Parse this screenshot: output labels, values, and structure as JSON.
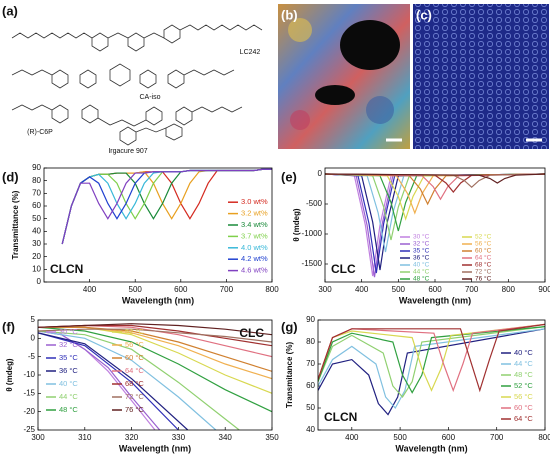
{
  "figure": {
    "a": {
      "label": "(a)",
      "compounds": [
        "LC242",
        "CA-iso",
        "(R)-C6P",
        "Irgacure 907"
      ]
    },
    "b": {
      "label": "(b)"
    },
    "c": {
      "label": "(c)"
    }
  },
  "chart_data": [
    {
      "type": "line",
      "panel": "(d)",
      "annotation": "CLCN",
      "annotation_loc": "lower left",
      "legend": "center right",
      "x_label": "Wavelength (nm)",
      "y_label": "Transmittance (%)",
      "xlim": [
        300,
        800
      ],
      "xticks": [
        400,
        500,
        600,
        700,
        800
      ],
      "ylim": [
        0,
        90
      ],
      "yticks": [
        0,
        10,
        20,
        30,
        40,
        50,
        60,
        70,
        80,
        90
      ],
      "x": [
        340,
        360,
        380,
        400,
        420,
        440,
        460,
        480,
        500,
        520,
        540,
        560,
        580,
        600,
        620,
        640,
        660,
        680,
        700,
        720,
        740,
        760,
        780,
        800
      ],
      "series": [
        {
          "name": "3.0 wt%",
          "color": "#d42a20",
          "values": [
            30,
            60,
            78,
            83,
            85,
            85,
            86,
            86,
            86,
            87,
            87,
            87,
            78,
            62,
            50,
            62,
            78,
            88,
            88,
            88,
            88,
            88,
            89,
            89
          ]
        },
        {
          "name": "3.2 wt%",
          "color": "#e8a020",
          "values": [
            30,
            60,
            78,
            83,
            85,
            85,
            86,
            86,
            86,
            87,
            78,
            62,
            50,
            62,
            78,
            87,
            88,
            88,
            88,
            88,
            88,
            88,
            89,
            89
          ]
        },
        {
          "name": "3.4 wt%",
          "color": "#1a8a3a",
          "values": [
            30,
            60,
            78,
            83,
            85,
            85,
            86,
            86,
            78,
            62,
            50,
            62,
            78,
            87,
            88,
            88,
            88,
            88,
            88,
            88,
            88,
            88,
            89,
            89
          ]
        },
        {
          "name": "3.7 wt%",
          "color": "#7fd04a",
          "values": [
            30,
            60,
            78,
            83,
            85,
            85,
            78,
            62,
            50,
            62,
            78,
            87,
            87,
            87,
            88,
            88,
            88,
            88,
            88,
            88,
            88,
            88,
            89,
            89
          ]
        },
        {
          "name": "4.0 wt%",
          "color": "#38b8d8",
          "values": [
            30,
            60,
            78,
            83,
            85,
            78,
            62,
            50,
            62,
            78,
            86,
            87,
            87,
            87,
            88,
            88,
            88,
            88,
            88,
            88,
            88,
            88,
            89,
            89
          ]
        },
        {
          "name": "4.2 wt%",
          "color": "#2040d0",
          "values": [
            30,
            60,
            78,
            83,
            78,
            62,
            50,
            62,
            78,
            86,
            87,
            87,
            87,
            87,
            88,
            88,
            88,
            88,
            88,
            88,
            88,
            88,
            89,
            89
          ]
        },
        {
          "name": "4.6 wt%",
          "color": "#8040c0",
          "values": [
            30,
            60,
            78,
            78,
            62,
            50,
            62,
            78,
            86,
            86,
            87,
            87,
            87,
            87,
            88,
            88,
            88,
            88,
            88,
            88,
            88,
            88,
            89,
            89
          ]
        }
      ]
    },
    {
      "type": "line",
      "panel": "(e)",
      "annotation": "CLC",
      "annotation_loc": "lower left",
      "legend": "lower center",
      "x_label": "Wavelength (nm)",
      "y_label": "θ (mdeg)",
      "xlim": [
        300,
        900
      ],
      "xticks": [
        300,
        400,
        500,
        600,
        700,
        800,
        900
      ],
      "ylim": [
        -1800,
        100
      ],
      "yticks": [
        -1500,
        -1000,
        -500,
        0
      ],
      "series": [
        {
          "name": "30 °C",
          "color": "#c080e0",
          "x": [
            300,
            380,
            410,
            430,
            450,
            480,
            900
          ],
          "values": [
            0,
            -30,
            -850,
            -1700,
            -850,
            -30,
            0
          ]
        },
        {
          "name": "32 °C",
          "color": "#9a60d0",
          "x": [
            300,
            385,
            415,
            435,
            455,
            485,
            900
          ],
          "values": [
            0,
            -30,
            -860,
            -1720,
            -860,
            -30,
            0
          ]
        },
        {
          "name": "35 °C",
          "color": "#3030b8",
          "x": [
            300,
            390,
            420,
            440,
            460,
            490,
            900
          ],
          "values": [
            0,
            -30,
            -825,
            -1650,
            -825,
            -30,
            0
          ]
        },
        {
          "name": "36 °C",
          "color": "#202080",
          "x": [
            300,
            400,
            430,
            450,
            470,
            500,
            900
          ],
          "values": [
            0,
            -30,
            -800,
            -1600,
            -800,
            -30,
            0
          ]
        },
        {
          "name": "40 °C",
          "color": "#80c0e0",
          "x": [
            300,
            415,
            445,
            465,
            485,
            515,
            900
          ],
          "values": [
            0,
            -30,
            -650,
            -1300,
            -650,
            -30,
            0
          ]
        },
        {
          "name": "44 °C",
          "color": "#90d070",
          "x": [
            300,
            430,
            460,
            480,
            500,
            530,
            900
          ],
          "values": [
            0,
            -30,
            -550,
            -1100,
            -550,
            -30,
            0
          ]
        },
        {
          "name": "48 °C",
          "color": "#30a040",
          "x": [
            300,
            450,
            480,
            500,
            520,
            550,
            900
          ],
          "values": [
            0,
            -30,
            -475,
            -950,
            -475,
            -30,
            0
          ]
        },
        {
          "name": "52 °C",
          "color": "#d8d850",
          "x": [
            300,
            470,
            500,
            520,
            540,
            570,
            900
          ],
          "values": [
            0,
            -30,
            -375,
            -750,
            -375,
            -30,
            0
          ]
        },
        {
          "name": "56 °C",
          "color": "#f0b050",
          "x": [
            300,
            495,
            525,
            545,
            565,
            595,
            900
          ],
          "values": [
            0,
            -30,
            -325,
            -650,
            -325,
            -30,
            0
          ]
        },
        {
          "name": "60 °C",
          "color": "#d08030",
          "x": [
            300,
            530,
            560,
            580,
            600,
            630,
            900
          ],
          "values": [
            0,
            -30,
            -250,
            -500,
            -250,
            -30,
            0
          ]
        },
        {
          "name": "64 °C",
          "color": "#e07080",
          "x": [
            300,
            565,
            595,
            615,
            635,
            665,
            900
          ],
          "values": [
            0,
            -30,
            -210,
            -420,
            -210,
            -30,
            0
          ]
        },
        {
          "name": "68 °C",
          "color": "#a03030",
          "x": [
            300,
            600,
            630,
            650,
            670,
            700,
            900
          ],
          "values": [
            0,
            -20,
            -150,
            -300,
            -150,
            -20,
            0
          ]
        },
        {
          "name": "72 °C",
          "color": "#a07060",
          "x": [
            300,
            650,
            680,
            700,
            720,
            750,
            900
          ],
          "values": [
            0,
            -20,
            -110,
            -220,
            -110,
            -20,
            0
          ]
        },
        {
          "name": "76 °C",
          "color": "#602020",
          "x": [
            300,
            720,
            750,
            770,
            790,
            820,
            900
          ],
          "values": [
            0,
            -20,
            -75,
            -150,
            -75,
            -20,
            0
          ]
        }
      ]
    },
    {
      "type": "line",
      "panel": "(f)",
      "annotation": "CLC",
      "annotation_loc": "upper right",
      "legend": "upper left",
      "x_label": "Wavelength (nm)",
      "y_label": "θ (mdeg)",
      "xlim": [
        300,
        350
      ],
      "xticks": [
        300,
        310,
        320,
        330,
        340,
        350
      ],
      "ylim": [
        -25,
        5
      ],
      "yticks": [
        -25,
        -20,
        -15,
        -10,
        -5,
        0,
        5
      ],
      "series": [
        {
          "name": "30 °C",
          "color": "#c080e0",
          "x": [
            300,
            305,
            310,
            315,
            320,
            325
          ],
          "values": [
            2,
            1,
            -3,
            -9,
            -17,
            -25
          ]
        },
        {
          "name": "32 °C",
          "color": "#9a60d0",
          "x": [
            300,
            305,
            310,
            315,
            320,
            326
          ],
          "values": [
            2,
            1,
            -3,
            -8,
            -16,
            -25
          ]
        },
        {
          "name": "35 °C",
          "color": "#3030b8",
          "x": [
            300,
            310,
            320,
            330
          ],
          "values": [
            1.5,
            -2,
            -12,
            -25
          ]
        },
        {
          "name": "36 °C",
          "color": "#202080",
          "x": [
            300,
            310,
            320,
            332
          ],
          "values": [
            1.5,
            -1.5,
            -11,
            -25
          ]
        },
        {
          "name": "40 °C",
          "color": "#80c0e0",
          "x": [
            300,
            310,
            320,
            330,
            338
          ],
          "values": [
            2,
            0,
            -6,
            -16,
            -25
          ]
        },
        {
          "name": "44 °C",
          "color": "#90d070",
          "x": [
            300,
            310,
            320,
            330,
            340,
            343
          ],
          "values": [
            2,
            1,
            -3,
            -12,
            -22,
            -25
          ]
        },
        {
          "name": "48 °C",
          "color": "#30a040",
          "x": [
            300,
            310,
            320,
            330,
            340,
            350
          ],
          "values": [
            3,
            2,
            -1,
            -7,
            -14,
            -20
          ]
        },
        {
          "name": "52 °C",
          "color": "#d8d850",
          "x": [
            300,
            310,
            320,
            330,
            340,
            350
          ],
          "values": [
            3,
            3,
            1,
            -4,
            -10,
            -15
          ]
        },
        {
          "name": "56 °C",
          "color": "#f0b050",
          "x": [
            300,
            310,
            320,
            330,
            340,
            350
          ],
          "values": [
            3,
            3,
            1.5,
            -2,
            -7,
            -11
          ]
        },
        {
          "name": "60 °C",
          "color": "#d08030",
          "x": [
            300,
            310,
            320,
            330,
            340,
            350
          ],
          "values": [
            3,
            3,
            2,
            -1,
            -5,
            -9
          ]
        },
        {
          "name": "64 °C",
          "color": "#e07080",
          "x": [
            300,
            310,
            320,
            330,
            340,
            350
          ],
          "values": [
            3,
            3.5,
            3,
            1,
            -2,
            -5
          ]
        },
        {
          "name": "68 °C",
          "color": "#a03030",
          "x": [
            300,
            310,
            320,
            330,
            340,
            350
          ],
          "values": [
            3,
            3.5,
            3.5,
            2,
            0,
            -2
          ]
        },
        {
          "name": "72 °C",
          "color": "#a07060",
          "x": [
            300,
            310,
            320,
            330,
            340,
            350
          ],
          "values": [
            2,
            2.5,
            2.5,
            1.5,
            0.5,
            -1
          ]
        },
        {
          "name": "76 °C",
          "color": "#602020",
          "x": [
            300,
            310,
            320,
            330,
            340,
            350
          ],
          "values": [
            3,
            3.5,
            4,
            3.5,
            2.5,
            1
          ]
        }
      ]
    },
    {
      "type": "line",
      "panel": "(g)",
      "annotation": "CLCN",
      "annotation_loc": "lower left",
      "legend": "center right",
      "x_label": "Wavelength (nm)",
      "y_label": "Transmitance (%)",
      "xlim": [
        330,
        800
      ],
      "xticks": [
        400,
        500,
        600,
        700,
        800
      ],
      "ylim": [
        40,
        90
      ],
      "yticks": [
        40,
        50,
        60,
        70,
        80,
        90
      ],
      "series": [
        {
          "name": "40 °C",
          "color": "#202080",
          "x": [
            330,
            360,
            400,
            435,
            455,
            475,
            495,
            515,
            800
          ],
          "values": [
            58,
            70,
            72,
            65,
            52,
            47,
            55,
            75,
            86
          ]
        },
        {
          "name": "44 °C",
          "color": "#80c0e0",
          "x": [
            330,
            360,
            400,
            450,
            470,
            490,
            510,
            530,
            800
          ],
          "values": [
            60,
            72,
            78,
            70,
            55,
            50,
            58,
            78,
            86
          ]
        },
        {
          "name": "48 °C",
          "color": "#90d070",
          "x": [
            330,
            360,
            400,
            465,
            485,
            505,
            525,
            545,
            800
          ],
          "values": [
            62,
            78,
            83,
            75,
            60,
            55,
            62,
            80,
            87
          ]
        },
        {
          "name": "52 °C",
          "color": "#30a040",
          "x": [
            330,
            360,
            400,
            485,
            505,
            525,
            545,
            565,
            800
          ],
          "values": [
            62,
            80,
            84,
            80,
            65,
            57,
            65,
            82,
            87
          ]
        },
        {
          "name": "56 °C",
          "color": "#d8d850",
          "x": [
            330,
            360,
            400,
            525,
            545,
            565,
            585,
            605,
            800
          ],
          "values": [
            63,
            82,
            85,
            82,
            68,
            58,
            68,
            83,
            88
          ]
        },
        {
          "name": "60 °C",
          "color": "#e07080",
          "x": [
            330,
            360,
            400,
            570,
            590,
            610,
            630,
            650,
            800
          ],
          "values": [
            63,
            82,
            86,
            84,
            70,
            58,
            70,
            84,
            88
          ]
        },
        {
          "name": "64 °C",
          "color": "#a03030",
          "x": [
            330,
            360,
            400,
            625,
            645,
            665,
            685,
            705,
            800
          ],
          "values": [
            63,
            82,
            86,
            86,
            72,
            58,
            72,
            85,
            88
          ]
        }
      ]
    }
  ]
}
